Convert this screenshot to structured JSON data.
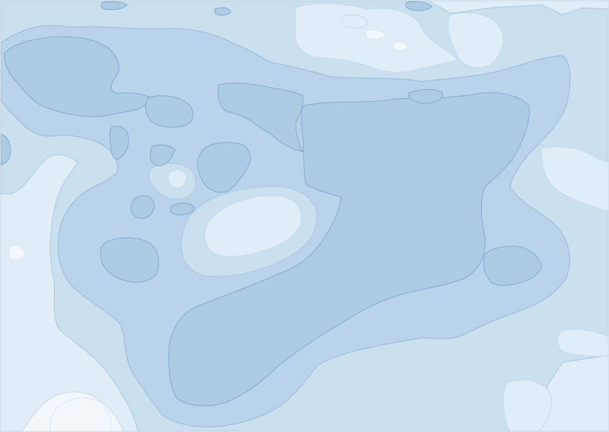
{
  "map": {
    "type": "filled-contour",
    "labels": "none",
    "levels": [
      {
        "name": "level-1",
        "fill": "#f2f7fc",
        "stroke": "#d8e5f1"
      },
      {
        "name": "level-2",
        "fill": "#e1edf6",
        "stroke": "#c3d8e9"
      },
      {
        "name": "level-3",
        "fill": "#cbe0ef",
        "stroke": "#a9c7df"
      },
      {
        "name": "level-4",
        "fill": "#b9d4ea",
        "stroke": "#94b8d8"
      },
      {
        "name": "level-5",
        "fill": "#aecbe4",
        "stroke": "#7fa8cf"
      }
    ]
  }
}
